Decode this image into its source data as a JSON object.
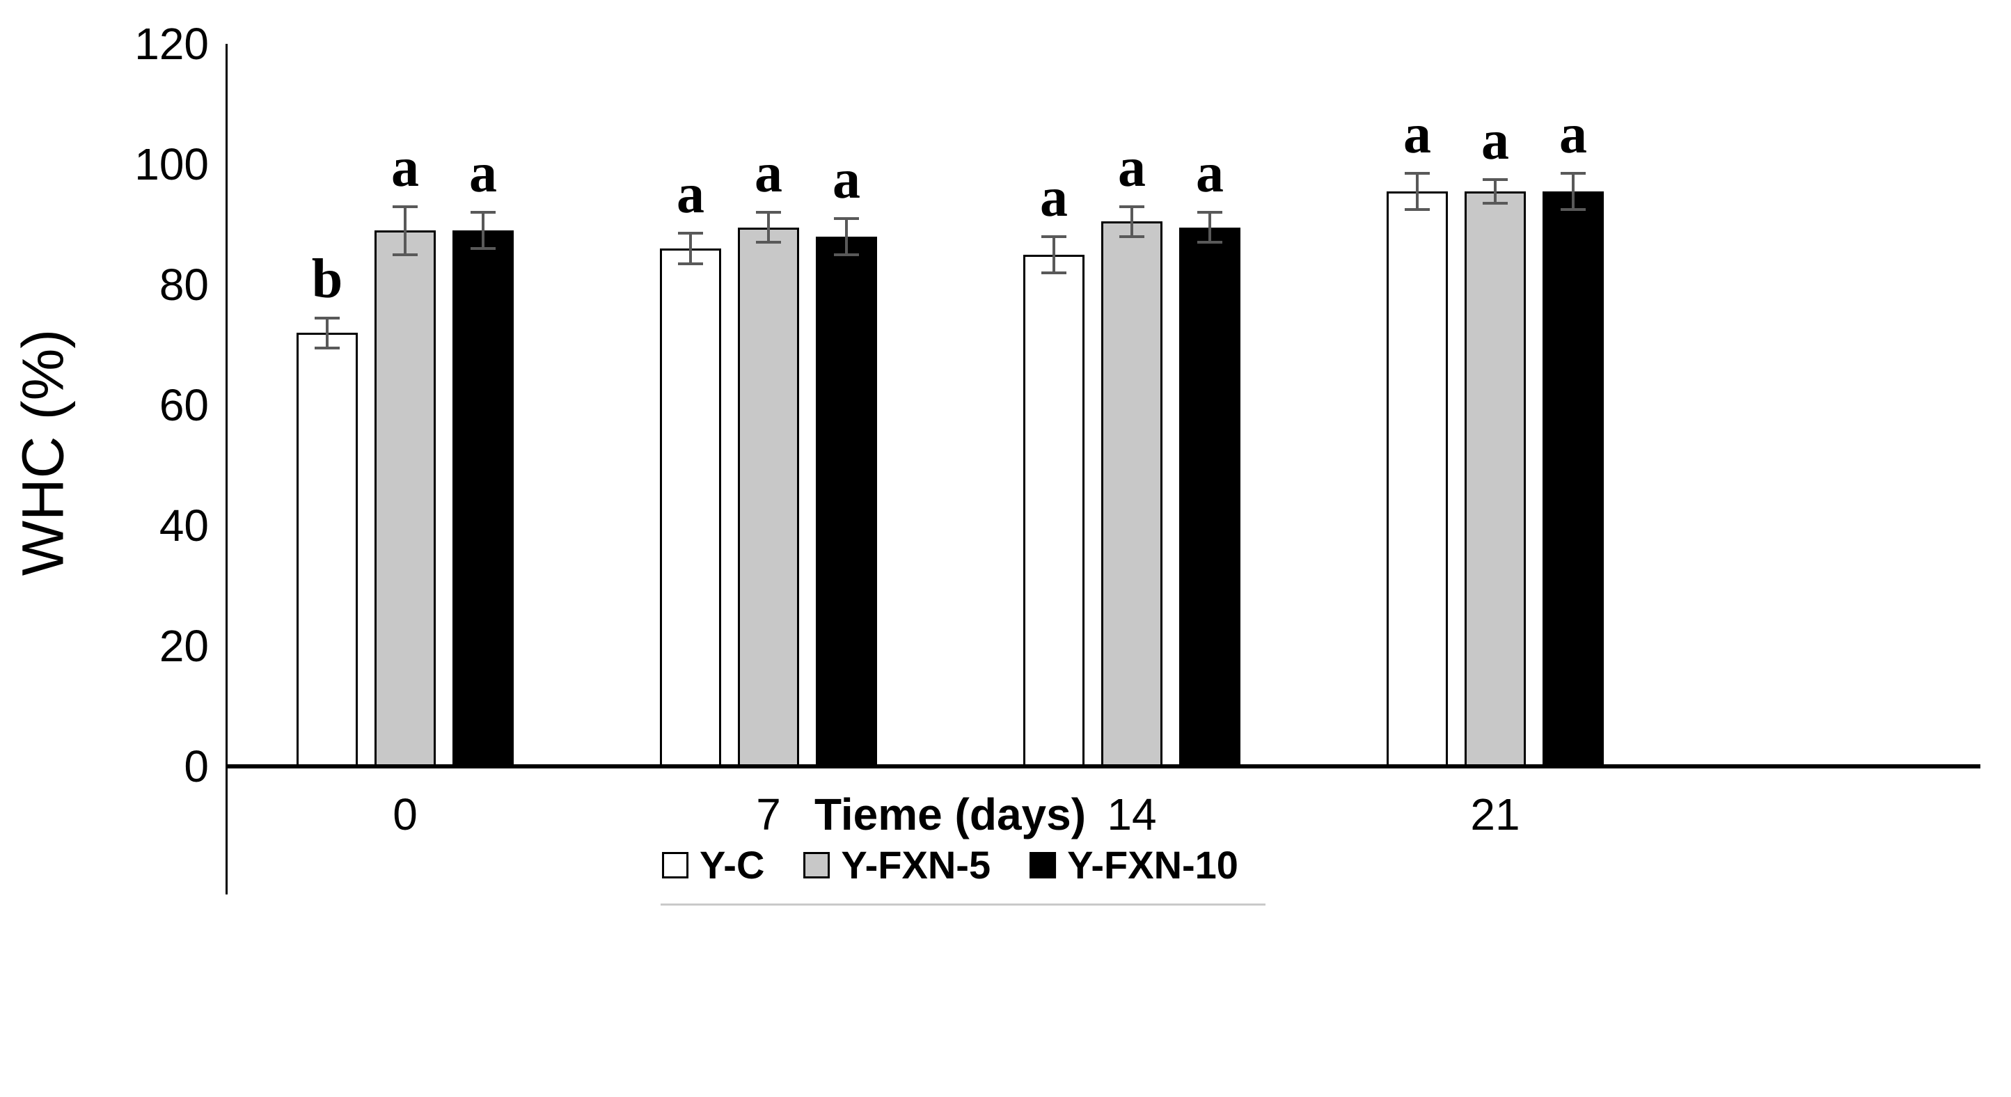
{
  "chart_data": {
    "type": "bar",
    "title": "",
    "xlabel": "Tieme (days)",
    "ylabel": "WHC (%)",
    "categories": [
      "0",
      "7",
      "14",
      "21"
    ],
    "y_ticks": [
      0,
      20,
      40,
      60,
      80,
      100,
      120
    ],
    "ylim": [
      0,
      120
    ],
    "grid": false,
    "legend_position": "bottom",
    "series": [
      {
        "name": "Y-C",
        "fill": "#ffffff",
        "border": "#000000",
        "values": [
          72,
          86,
          85,
          95.5
        ],
        "errors": [
          2.5,
          2.5,
          3,
          3
        ],
        "letters": [
          "b",
          "a",
          "a",
          "a"
        ]
      },
      {
        "name": "Y-FXN-5",
        "fill": "#c8c8c8",
        "border": "#000000",
        "values": [
          89,
          89.5,
          90.5,
          95.5
        ],
        "errors": [
          4,
          2.5,
          2.5,
          2
        ],
        "letters": [
          "a",
          "a",
          "a",
          "a"
        ]
      },
      {
        "name": "Y-FXN-10",
        "fill": "#000000",
        "border": "#000000",
        "values": [
          89,
          88,
          89.5,
          95.5
        ],
        "errors": [
          3,
          3,
          2.5,
          3
        ],
        "letters": [
          "a",
          "a",
          "a",
          "a"
        ]
      }
    ],
    "error_bar_color": "#595959",
    "axis_color": "#000000"
  }
}
